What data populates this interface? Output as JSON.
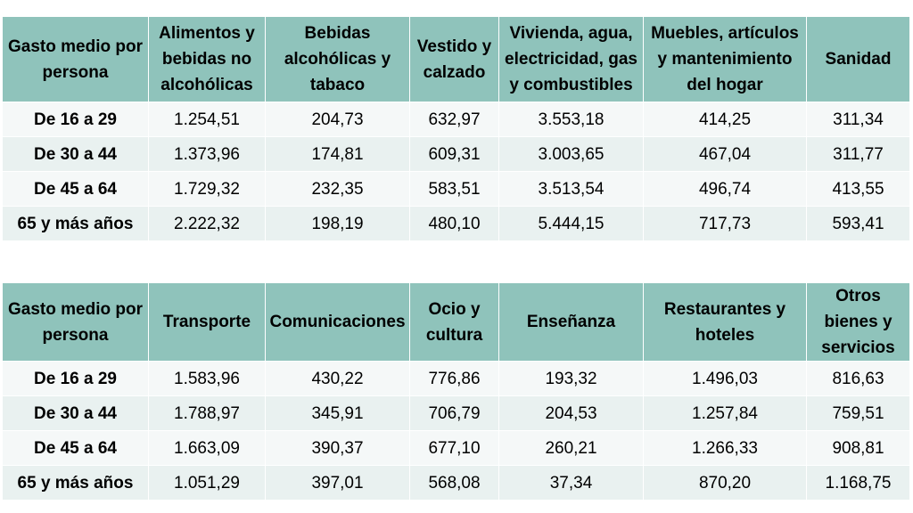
{
  "table1": {
    "headers": [
      "Gasto medio por\npersona",
      "Alimentos y\nbebidas no\nalcohólicas",
      "Bebidas\nalcohólicas y\ntabaco",
      "Vestido y\ncalzado",
      "Vivienda, agua,\nelectricidad, gas\ny  combustibles",
      "Muebles, artículos\ny mantenimiento\ndel hogar",
      "Sanidad"
    ],
    "rows": [
      [
        "De 16 a 29",
        "1.254,51",
        "204,73",
        "632,97",
        "3.553,18",
        "414,25",
        "311,34"
      ],
      [
        "De 30 a 44",
        "1.373,96",
        "174,81",
        "609,31",
        "3.003,65",
        "467,04",
        "311,77"
      ],
      [
        "De 45 a 64",
        "1.729,32",
        "232,35",
        "583,51",
        "3.513,54",
        "496,74",
        "413,55"
      ],
      [
        "65 y más años",
        "2.222,32",
        "198,19",
        "480,10",
        "5.444,15",
        "717,73",
        "593,41"
      ]
    ]
  },
  "table2": {
    "headers": [
      "Gasto medio por\npersona",
      "Transporte",
      "Comunicaciones",
      "Ocio y\ncultura",
      "Enseñanza",
      "Restaurantes y\nhoteles",
      "Otros\nbienes y\nservicios"
    ],
    "rows": [
      [
        "De 16 a 29",
        "1.583,96",
        "430,22",
        "776,86",
        "193,32",
        "1.496,03",
        "816,63"
      ],
      [
        "De 30 a 44",
        "1.788,97",
        "345,91",
        "706,79",
        "204,53",
        "1.257,84",
        "759,51"
      ],
      [
        "De 45 a 64",
        "1.663,09",
        "390,37",
        "677,10",
        "260,21",
        "1.266,33",
        "908,81"
      ],
      [
        "65 y más años",
        "1.051,29",
        "397,01",
        "568,08",
        "37,34",
        "870,20",
        "1.168,75"
      ]
    ]
  }
}
